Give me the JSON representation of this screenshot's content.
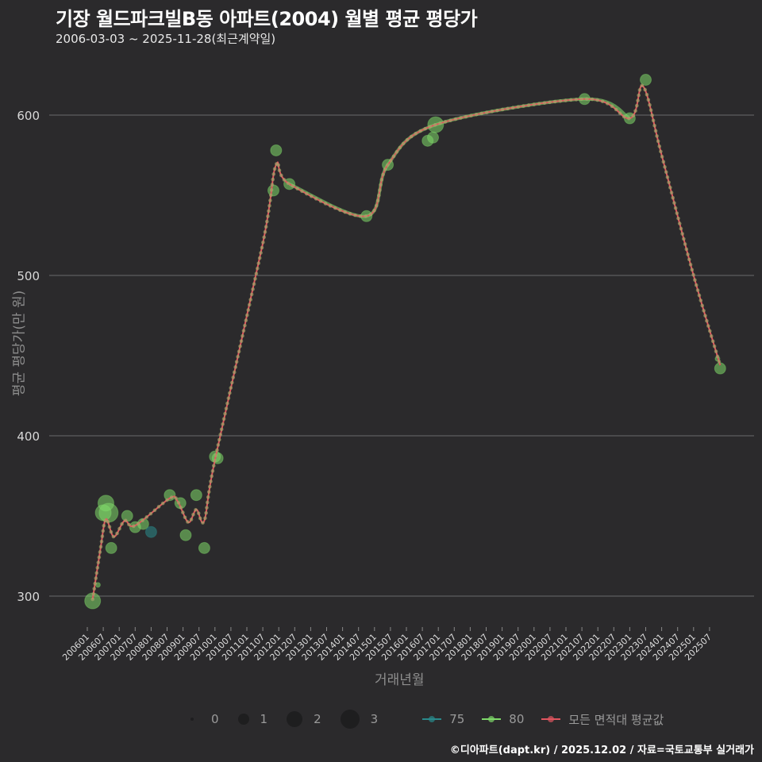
{
  "header": {
    "title": "기장 월드파크빌B동 아파트(2004) 월별 평균 평당가",
    "subtitle": "2006-03-03 ~ 2025-11-28(최근계약일)"
  },
  "axes": {
    "y_label": "평균 평당가(만 원)",
    "x_label": "거래년월"
  },
  "legend": {
    "size_title": "",
    "sizes": [
      {
        "label": "0",
        "r": 2
      },
      {
        "label": "1",
        "r": 7
      },
      {
        "label": "2",
        "r": 10
      },
      {
        "label": "3",
        "r": 12
      }
    ],
    "series": [
      {
        "label": "75",
        "color": "#2a8a8c"
      },
      {
        "label": "80",
        "color": "#7fd96a"
      },
      {
        "label": "모든 면적대 평균값",
        "color": "#e0555f"
      }
    ]
  },
  "caption": "©디아파트(dapt.kr) / 2025.12.02 / 자료=국토교통부 실거래가",
  "colors": {
    "background": "#2b2a2c",
    "grid": "#5e5e60",
    "s75": "#2a8a8c",
    "s80": "#7fd96a",
    "avg": "#e0555f"
  },
  "chart_data": {
    "type": "line",
    "title": "기장 월드파크빌B동 아파트(2004) 월별 평균 평당가",
    "subtitle": "2006-03-03 ~ 2025-11-28(최근계약일)",
    "xlabel": "거래년월",
    "ylabel": "평균 평당가(만 원)",
    "ylim": [
      280,
      630
    ],
    "yticks": [
      300,
      400,
      500,
      600
    ],
    "xticks": [
      "200601",
      "200607",
      "200701",
      "200707",
      "200801",
      "200807",
      "200901",
      "200907",
      "201001",
      "201007",
      "201101",
      "201107",
      "201201",
      "201207",
      "201301",
      "201307",
      "201401",
      "201407",
      "201501",
      "201507",
      "201601",
      "201607",
      "201701",
      "201707",
      "201801",
      "201807",
      "201901",
      "201907",
      "202001",
      "202007",
      "202101",
      "202107",
      "202201",
      "202207",
      "202301",
      "202307",
      "202401",
      "202407",
      "202501",
      "202507"
    ],
    "grid": "horizontal",
    "legend_position": "bottom",
    "series": [
      {
        "name": "75",
        "points": [
          {
            "x": "200801",
            "y": 340,
            "n": 1
          }
        ]
      },
      {
        "name": "80",
        "points": [
          {
            "x": "200603",
            "y": 297,
            "n": 2
          },
          {
            "x": "200605",
            "y": 307,
            "n": 0
          },
          {
            "x": "200607",
            "y": 352,
            "n": 2
          },
          {
            "x": "200608",
            "y": 358,
            "n": 2
          },
          {
            "x": "200609",
            "y": 352,
            "n": 3
          },
          {
            "x": "200610",
            "y": 330,
            "n": 1
          },
          {
            "x": "200704",
            "y": 350,
            "n": 1
          },
          {
            "x": "200707",
            "y": 343,
            "n": 1
          },
          {
            "x": "200710",
            "y": 345,
            "n": 1
          },
          {
            "x": "200808",
            "y": 363,
            "n": 1
          },
          {
            "x": "200812",
            "y": 358,
            "n": 1
          },
          {
            "x": "200902",
            "y": 338,
            "n": 1
          },
          {
            "x": "200906",
            "y": 363,
            "n": 1
          },
          {
            "x": "200909",
            "y": 330,
            "n": 1
          },
          {
            "x": "201001",
            "y": 387,
            "n": 1
          },
          {
            "x": "201002",
            "y": 386,
            "n": 1
          },
          {
            "x": "201111",
            "y": 553,
            "n": 1
          },
          {
            "x": "201112",
            "y": 578,
            "n": 1
          },
          {
            "x": "201205",
            "y": 557,
            "n": 1
          },
          {
            "x": "201410",
            "y": 537,
            "n": 1
          },
          {
            "x": "201506",
            "y": 569,
            "n": 1
          },
          {
            "x": "201609",
            "y": 584,
            "n": 1
          },
          {
            "x": "201611",
            "y": 586,
            "n": 1
          },
          {
            "x": "201612",
            "y": 594,
            "n": 2
          },
          {
            "x": "202108",
            "y": 610,
            "n": 1
          },
          {
            "x": "202301",
            "y": 598,
            "n": 1
          },
          {
            "x": "202307",
            "y": 622,
            "n": 1
          },
          {
            "x": "202510",
            "y": 448,
            "n": 0
          },
          {
            "x": "202511",
            "y": 442,
            "n": 1
          }
        ]
      },
      {
        "name": "모든 면적대 평균값",
        "points": [
          {
            "x": "200603",
            "y": 298
          },
          {
            "x": "200606",
            "y": 330
          },
          {
            "x": "200608",
            "y": 348
          },
          {
            "x": "200611",
            "y": 337
          },
          {
            "x": "200703",
            "y": 347
          },
          {
            "x": "200707",
            "y": 344
          },
          {
            "x": "200808",
            "y": 361
          },
          {
            "x": "200811",
            "y": 359
          },
          {
            "x": "200903",
            "y": 346
          },
          {
            "x": "200906",
            "y": 354
          },
          {
            "x": "200909",
            "y": 347
          },
          {
            "x": "201001",
            "y": 385
          },
          {
            "x": "201107",
            "y": 520
          },
          {
            "x": "201112",
            "y": 569
          },
          {
            "x": "201205",
            "y": 557
          },
          {
            "x": "201410",
            "y": 537
          },
          {
            "x": "201506",
            "y": 569
          },
          {
            "x": "201612",
            "y": 594
          },
          {
            "x": "202108",
            "y": 610
          },
          {
            "x": "202301",
            "y": 598
          },
          {
            "x": "202306",
            "y": 618
          },
          {
            "x": "202401",
            "y": 575
          },
          {
            "x": "202501",
            "y": 500
          },
          {
            "x": "202511",
            "y": 444
          }
        ]
      }
    ]
  }
}
